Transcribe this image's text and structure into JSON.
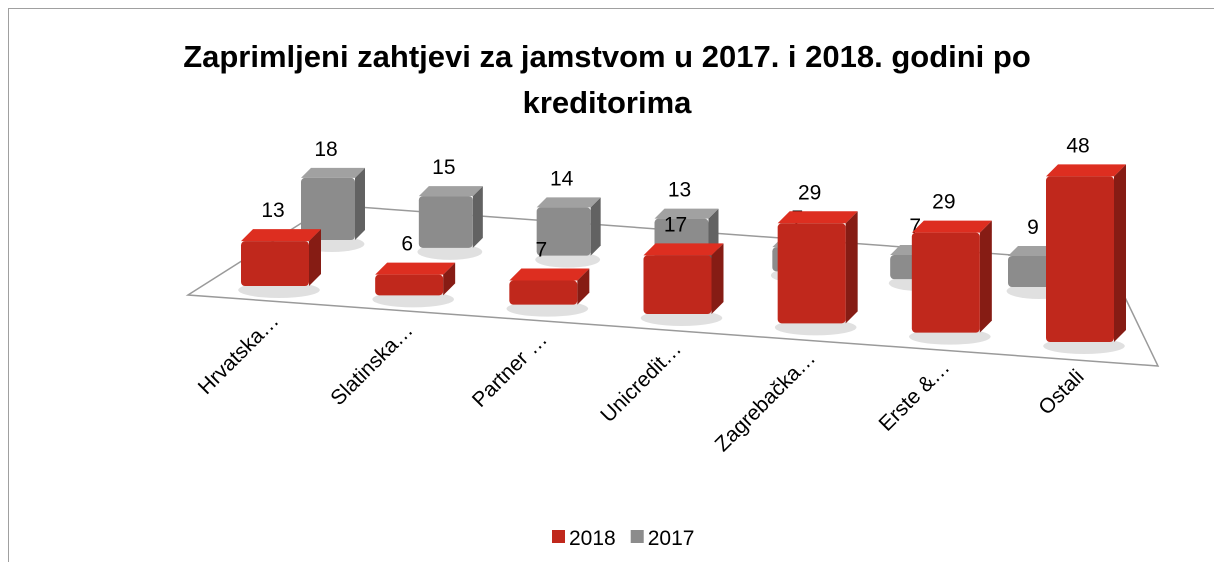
{
  "chart_data": {
    "type": "bar3d",
    "title": "Zaprimljeni zahtjevi za jamstvom u 2017. i 2018. godini po kreditorima",
    "categories": [
      "Hrvatska…",
      "Slatinska…",
      "Partner …",
      "Unicredit…",
      "Zagrebačka…",
      "Erste &…",
      "Ostali"
    ],
    "series": [
      {
        "name": "2018",
        "color": "#c0281c",
        "values": [
          13,
          6,
          7,
          17,
          29,
          29,
          48
        ]
      },
      {
        "name": "2017",
        "color": "#8c8c8c",
        "values": [
          18,
          15,
          14,
          13,
          7,
          7,
          9
        ]
      }
    ],
    "legend": "bottom"
  }
}
